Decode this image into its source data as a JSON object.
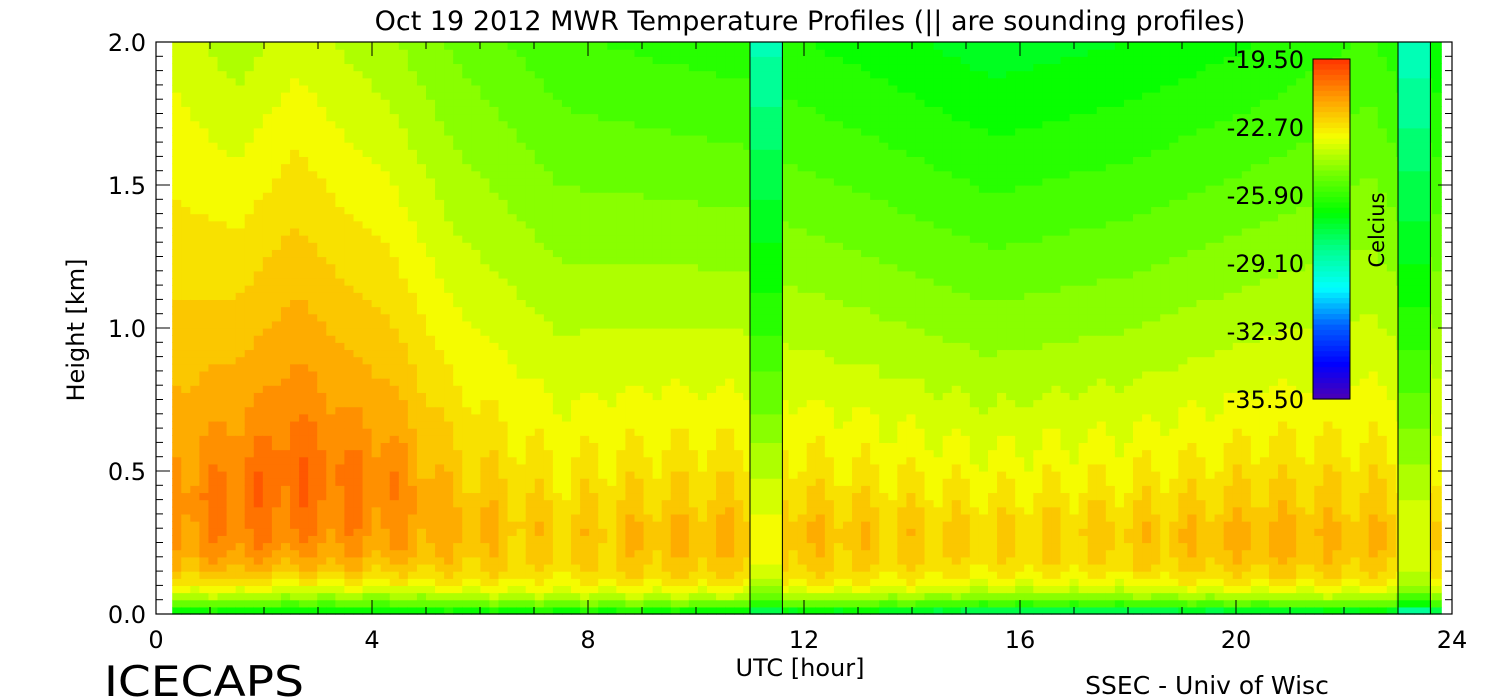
{
  "chart_data": {
    "type": "heatmap",
    "title": "Oct 19 2012 MWR Temperature Profiles (|| are sounding profiles)",
    "xlabel": "UTC [hour]",
    "ylabel": "Height [km]",
    "xlim": [
      0,
      24
    ],
    "ylim": [
      0,
      2.0
    ],
    "x_ticks": [
      0,
      4,
      8,
      12,
      16,
      20,
      24
    ],
    "x_tick_labels": [
      "0",
      "4",
      "8",
      "12",
      "16",
      "20",
      "24"
    ],
    "y_ticks": [
      0,
      0.5,
      1.0,
      1.5,
      2.0
    ],
    "y_tick_labels": [
      "0.0",
      "0.5",
      "1.0",
      "1.5",
      "2.0"
    ],
    "data_start_hour": 0.3,
    "data_end_hour": 23.8,
    "sounding_profiles": [
      {
        "start_hour": 11.0,
        "end_hour": 11.6
      },
      {
        "start_hour": 23.0,
        "end_hour": 23.6
      }
    ],
    "colorbar": {
      "label": "Celcius",
      "min": -35.5,
      "max": -19.5,
      "tick_values": [
        -19.5,
        -22.7,
        -25.9,
        -29.1,
        -32.3,
        -35.5
      ],
      "tick_labels": [
        "-19.50",
        "-22.70",
        "-25.90",
        "-29.10",
        "-32.30",
        "-35.50"
      ],
      "colors": [
        "#ff3a00",
        "#ffa000",
        "#f5ff00",
        "#70ff00",
        "#00ff00",
        "#00ff90",
        "#00ffff",
        "#0060ff",
        "#0000ff",
        "#5000b0"
      ]
    },
    "profile_keyframes": [
      {
        "hour": 0.3,
        "surface": -27,
        "peak": -20.8,
        "peak_height": 0.4,
        "top": -23.2
      },
      {
        "hour": 1.5,
        "surface": -27,
        "peak": -20.3,
        "peak_height": 0.45,
        "top": -23.8
      },
      {
        "hour": 2.6,
        "surface": -27,
        "peak": -20.1,
        "peak_height": 0.55,
        "top": -23.2
      },
      {
        "hour": 3.5,
        "surface": -27,
        "peak": -20.4,
        "peak_height": 0.5,
        "top": -23.6
      },
      {
        "hour": 4.3,
        "surface": -27,
        "peak": -20.6,
        "peak_height": 0.5,
        "top": -23.9
      },
      {
        "hour": 5.5,
        "surface": -27,
        "peak": -21.4,
        "peak_height": 0.35,
        "top": -24.6
      },
      {
        "hour": 7.5,
        "surface": -27,
        "peak": -21.9,
        "peak_height": 0.3,
        "top": -25.4
      },
      {
        "hour": 9.0,
        "surface": -27,
        "peak": -21.6,
        "peak_height": 0.3,
        "top": -25.6
      },
      {
        "hour": 11.0,
        "surface": -27.5,
        "peak": -21.5,
        "peak_height": 0.3,
        "top": -25.8
      },
      {
        "hour": 13.0,
        "surface": -27.5,
        "peak": -21.7,
        "peak_height": 0.3,
        "top": -26.2
      },
      {
        "hour": 15.5,
        "surface": -28.5,
        "peak": -22.0,
        "peak_height": 0.3,
        "top": -26.8
      },
      {
        "hour": 18.0,
        "surface": -28.5,
        "peak": -21.8,
        "peak_height": 0.3,
        "top": -26.5
      },
      {
        "hour": 20.5,
        "surface": -28,
        "peak": -21.4,
        "peak_height": 0.3,
        "top": -26.0
      },
      {
        "hour": 22.5,
        "surface": -27.5,
        "peak": -21.6,
        "peak_height": 0.3,
        "top": -25.4
      },
      {
        "hour": 23.8,
        "surface": -28.5,
        "peak": -21.8,
        "peak_height": 0.3,
        "top": -26.5
      }
    ]
  },
  "footer": {
    "left": "ICECAPS",
    "right": "SSEC - Univ of Wisc"
  }
}
